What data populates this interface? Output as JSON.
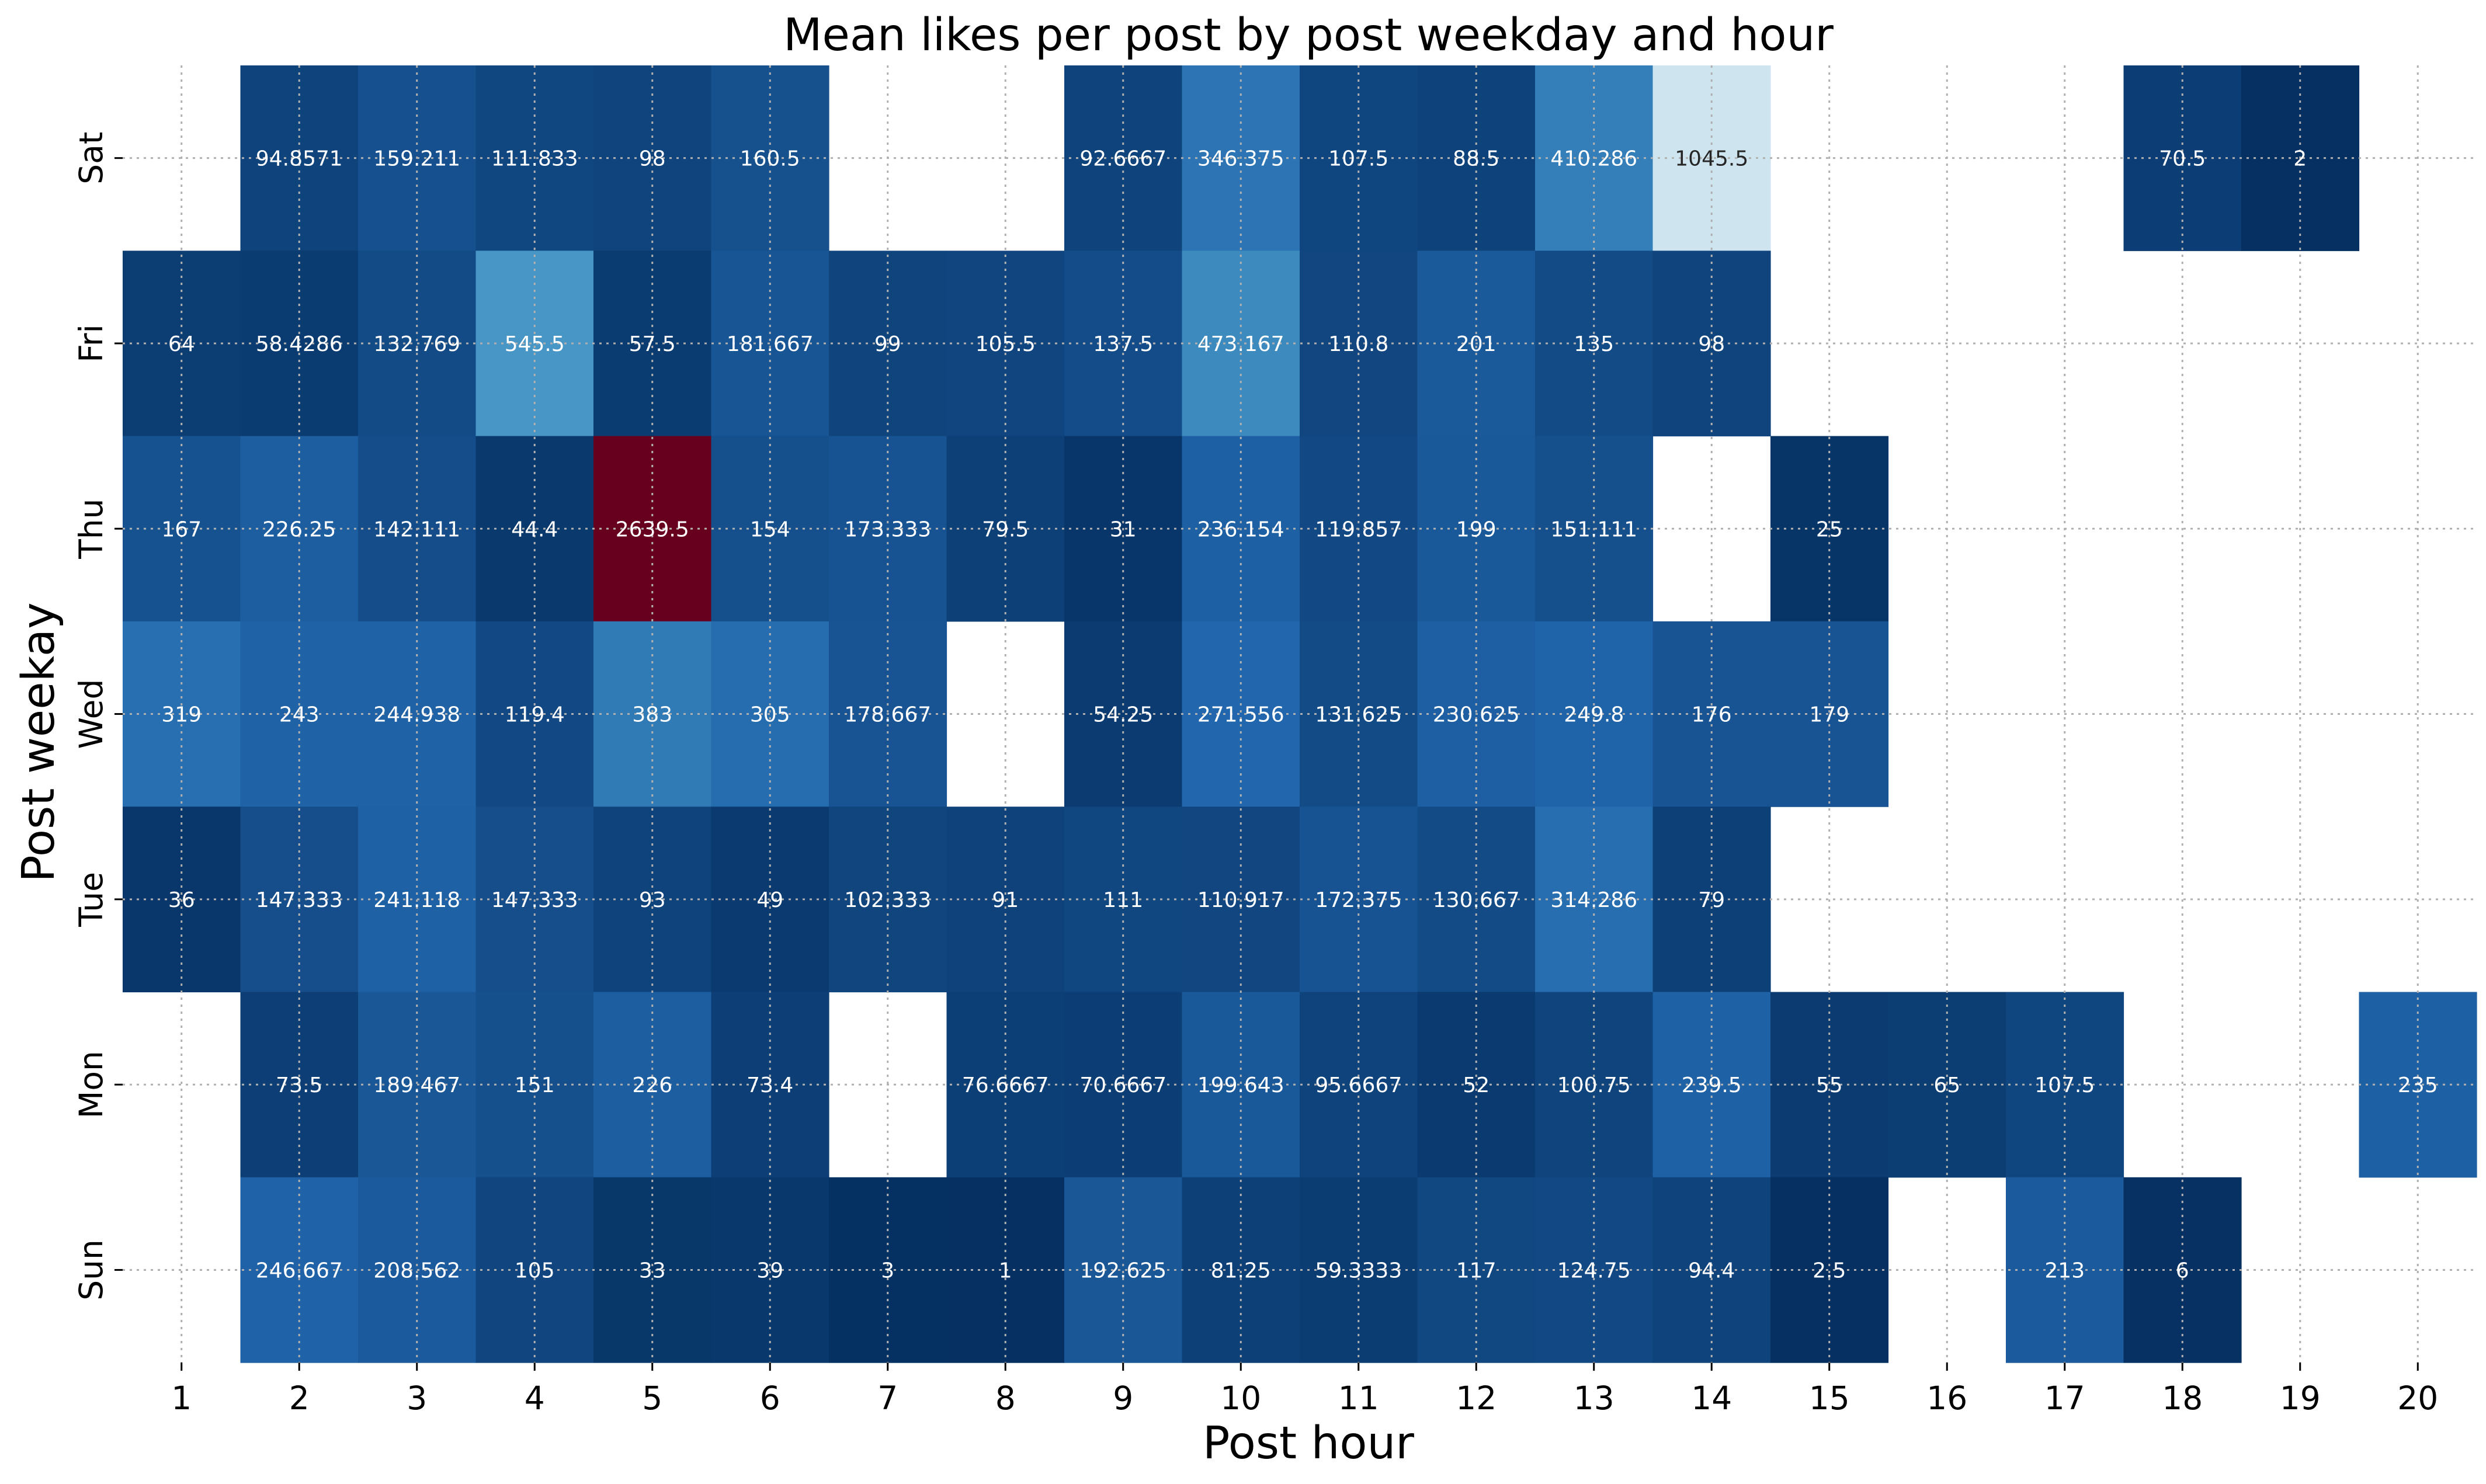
{
  "chart_data": {
    "type": "heatmap",
    "title": "Mean likes per post by post weekday and hour",
    "xlabel": "Post hour",
    "ylabel": "Post weekay",
    "x_categories": [
      "1",
      "2",
      "3",
      "4",
      "5",
      "6",
      "7",
      "8",
      "9",
      "10",
      "11",
      "12",
      "13",
      "14",
      "15",
      "16",
      "17",
      "18",
      "19",
      "20"
    ],
    "y_categories": [
      "Sat",
      "Fri",
      "Thu",
      "Wed",
      "Tue",
      "Mon",
      "Sun"
    ],
    "colormap": "RdBu_r",
    "color_range": [
      1,
      2639.5
    ],
    "grid": true,
    "values": [
      [
        null,
        94.8571,
        159.211,
        111.833,
        98,
        160.5,
        null,
        null,
        92.6667,
        346.375,
        107.5,
        88.5,
        410.286,
        1045.5,
        null,
        null,
        null,
        70.5,
        2,
        null
      ],
      [
        64,
        58.4286,
        132.769,
        545.5,
        57.5,
        181.667,
        99,
        105.5,
        137.5,
        473.167,
        110.8,
        201,
        135,
        98,
        null,
        null,
        null,
        null,
        null,
        null
      ],
      [
        167,
        226.25,
        142.111,
        44.4,
        2639.5,
        154,
        173.333,
        79.5,
        31,
        236.154,
        119.857,
        199,
        151.111,
        null,
        25,
        null,
        null,
        null,
        null,
        null
      ],
      [
        319,
        243,
        244.938,
        119.4,
        383,
        305,
        178.667,
        null,
        54.25,
        271.556,
        131.625,
        230.625,
        249.8,
        176,
        179,
        null,
        null,
        null,
        null,
        null
      ],
      [
        36,
        147.333,
        241.118,
        147.333,
        93,
        49,
        102.333,
        91,
        111,
        110.917,
        172.375,
        130.667,
        314.286,
        79,
        null,
        null,
        null,
        null,
        null,
        null
      ],
      [
        null,
        73.5,
        189.467,
        151,
        226,
        73.4,
        null,
        76.6667,
        70.6667,
        199.643,
        95.6667,
        52,
        100.75,
        239.5,
        55,
        65,
        107.5,
        null,
        null,
        235
      ],
      [
        null,
        246.667,
        208.562,
        105,
        33,
        39,
        3,
        1,
        192.625,
        81.25,
        59.3333,
        117,
        124.75,
        94.4,
        2.5,
        null,
        213,
        6,
        null,
        null
      ]
    ]
  }
}
